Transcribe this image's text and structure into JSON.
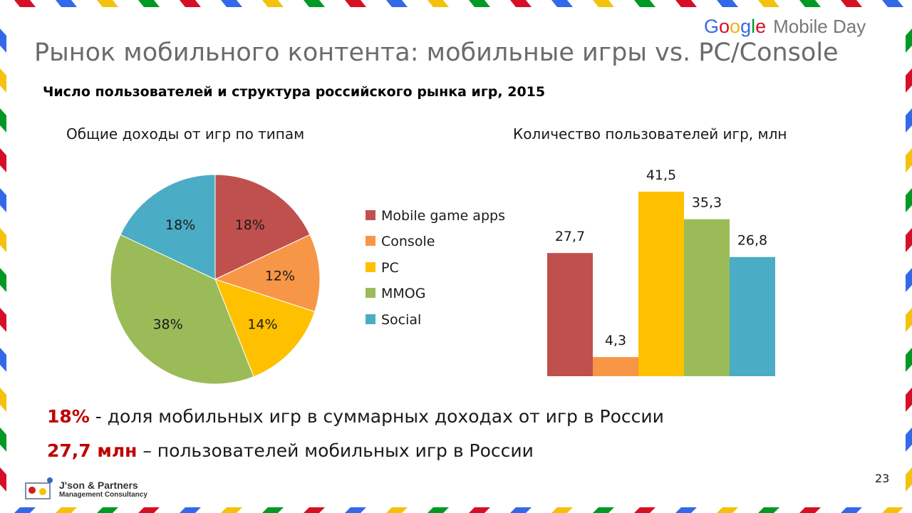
{
  "slide": {
    "title": "Рынок мобильного контента: мобильные игры vs. PC/Console",
    "subtitle": "Число пользователей и структура российского рынка игр, 2015",
    "page_number": "23"
  },
  "brand": {
    "google_letters": [
      "G",
      "o",
      "o",
      "g",
      "l",
      "e"
    ],
    "event": "Mobile Day",
    "colors": [
      "#3369e8",
      "#d50f25",
      "#eeb211",
      "#3369e8",
      "#009925",
      "#d50f25"
    ]
  },
  "logo": {
    "name": "J'son & Partners",
    "subtitle": "Management Consultancy"
  },
  "facts": [
    {
      "highlight": "18%",
      "text": " - доля мобильных игр в суммарных доходах от игр в России"
    },
    {
      "highlight": "27,7 млн",
      "text": " – пользователей мобильных игр в России"
    }
  ],
  "chart_data": [
    {
      "type": "pie",
      "title": "Общие доходы от игр по типам",
      "categories": [
        "Mobile game apps",
        "Console",
        "PC",
        "MMOG",
        "Social"
      ],
      "values": [
        18,
        12,
        14,
        38,
        18
      ],
      "labels": [
        "18%",
        "12%",
        "14%",
        "38%",
        "18%"
      ],
      "colors": [
        "#c0504d",
        "#f79646",
        "#ffc000",
        "#9bbb59",
        "#4bacc6"
      ],
      "legend": "right"
    },
    {
      "type": "bar",
      "title": "Количество пользователей игр, млн",
      "categories": [
        "Mobile game apps",
        "Console",
        "PC",
        "MMOG",
        "Social"
      ],
      "values": [
        27.7,
        4.3,
        41.5,
        35.3,
        26.8
      ],
      "labels": [
        "27,7",
        "4,3",
        "41,5",
        "35,3",
        "26,8"
      ],
      "colors": [
        "#c0504d",
        "#f79646",
        "#ffc000",
        "#9bbb59",
        "#4bacc6"
      ],
      "ylim": [
        0,
        41.5
      ],
      "grid": false
    }
  ]
}
